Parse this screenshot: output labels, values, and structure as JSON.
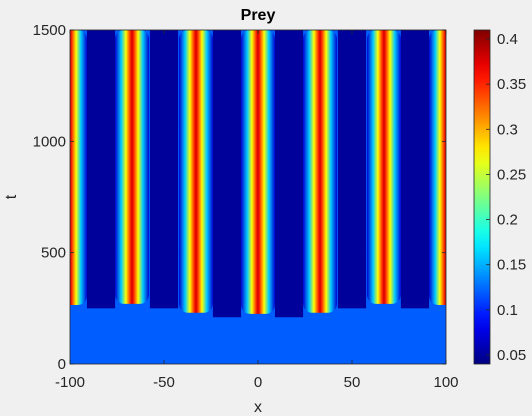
{
  "chart_data": {
    "type": "heatmap",
    "title": "Prey",
    "xlabel": "x",
    "ylabel": "t",
    "xlim": [
      -100,
      100
    ],
    "ylim": [
      0,
      1500
    ],
    "x_ticks": [
      -100,
      -50,
      0,
      50,
      100
    ],
    "y_ticks": [
      0,
      500,
      1000,
      1500
    ],
    "x_tick_labels": [
      "-100",
      "-50",
      "0",
      "50",
      "100"
    ],
    "y_tick_labels": [
      "0",
      "500",
      "1000",
      "1500"
    ],
    "colorbar": {
      "colormap": "jet",
      "range": [
        0.04,
        0.41
      ],
      "ticks": [
        0.05,
        0.1,
        0.15,
        0.2,
        0.25,
        0.3,
        0.35,
        0.4
      ],
      "tick_labels": [
        "0.05",
        "0.1",
        "0.15",
        "0.2",
        "0.25",
        "0.3",
        "0.35",
        "0.4"
      ]
    },
    "background_value": 0.12,
    "trough_value": 0.05,
    "stripe_peak_value": 0.38,
    "stripes": [
      {
        "center_x": -100,
        "onset_t": 265
      },
      {
        "center_x": -67,
        "onset_t": 270
      },
      {
        "center_x": -33,
        "onset_t": 230
      },
      {
        "center_x": 0,
        "onset_t": 225
      },
      {
        "center_x": 33,
        "onset_t": 230
      },
      {
        "center_x": 67,
        "onset_t": 270
      },
      {
        "center_x": 100,
        "onset_t": 265
      }
    ]
  }
}
